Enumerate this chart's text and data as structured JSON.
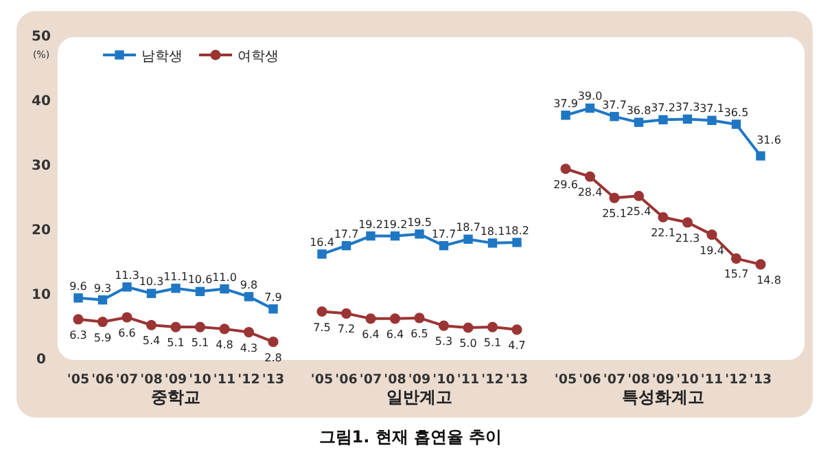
{
  "chart_data": {
    "type": "line",
    "title": "그림1. 현재 흡연율 추이",
    "ylabel": "(%)",
    "categories": [
      "'05",
      "'06",
      "'07",
      "'08",
      "'09",
      "'10",
      "'11",
      "'12",
      "'13",
      null,
      "'05",
      "'06",
      "'07",
      "'08",
      "'09",
      "'10",
      "'11",
      "'12",
      "'13",
      null,
      "'05",
      "'06",
      "'07",
      "'08",
      "'09",
      "'10",
      "'11",
      "'12",
      "'13"
    ],
    "series": [
      {
        "name": "남학생",
        "color": "#1f77c4",
        "marker": "square",
        "values": [
          9.6,
          9.3,
          11.3,
          10.3,
          11.1,
          10.6,
          11.0,
          9.8,
          7.9,
          null,
          16.4,
          17.7,
          19.2,
          19.2,
          19.5,
          17.7,
          18.7,
          18.1,
          18.2,
          null,
          37.9,
          39.0,
          37.7,
          36.8,
          37.2,
          37.3,
          37.1,
          36.5,
          31.6
        ],
        "value_labels": [
          "9.6",
          "9.3",
          "11.3",
          "10.3",
          "11.1",
          "10.6",
          "11.0",
          "9.8",
          "7.9",
          null,
          "16.4",
          "17.7",
          "19.2",
          "19.2",
          "19.5",
          "17.7",
          "18.7",
          "18.1",
          "18.2",
          null,
          "37.9",
          "39.0",
          "37.7",
          "36.8",
          "37.2",
          "37.3",
          "37.1",
          "36.5",
          "31.6"
        ]
      },
      {
        "name": "여학생",
        "color": "#9b3434",
        "marker": "circle",
        "values": [
          6.3,
          5.9,
          6.6,
          5.4,
          5.1,
          5.1,
          4.8,
          4.3,
          2.8,
          null,
          7.5,
          7.2,
          6.4,
          6.4,
          6.5,
          5.3,
          5.0,
          5.1,
          4.7,
          null,
          29.6,
          28.4,
          25.1,
          25.4,
          22.1,
          21.3,
          19.4,
          15.7,
          14.8
        ],
        "value_labels": [
          "6.3",
          "5.9",
          "6.6",
          "5.4",
          "5.1",
          "5.1",
          "4.8",
          "4.3",
          "2.8",
          null,
          "7.5",
          "7.2",
          "6.4",
          "6.4",
          "6.5",
          "5.3",
          "5.0",
          "5.1",
          "4.7",
          null,
          "29.6",
          "28.4",
          "25.1",
          "25.4",
          "22.1",
          "21.3",
          "19.4",
          "15.7",
          "14.8"
        ]
      }
    ],
    "annotations": [
      "중학교",
      "일반계고",
      "특성화계고"
    ],
    "ylim": [
      0,
      50
    ],
    "yticks": [
      0,
      10,
      20,
      30,
      40,
      50
    ],
    "grid": false,
    "legend": "top left",
    "line_style": "solid"
  }
}
